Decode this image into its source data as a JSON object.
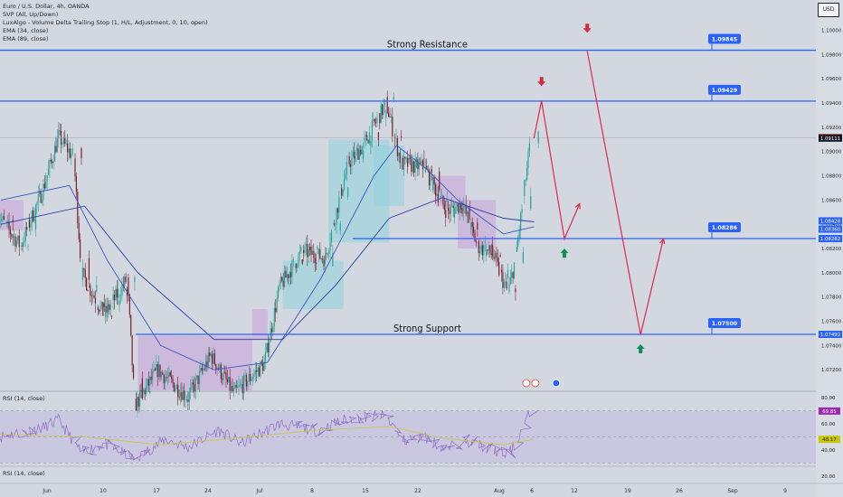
{
  "header": {
    "symbol": "Euro / U.S. Dollar, 4h, OANDA",
    "indicators": [
      "SVP (All, Up/Down)",
      "LuxAlgo - Volume Delta Trailing Stop (1, H/L, Adjustment, 0, 10, open)",
      "EMA (34, close)",
      "EMA (89, close)"
    ],
    "currency": "USD"
  },
  "colors": {
    "background": "#d3d8e0",
    "level_line": "#2962ff",
    "projection": "#e0294a",
    "down_arrow": "#d62a3c",
    "up_arrow": "#118a5e",
    "bull_candle": "#26a69a",
    "bear_candle": "#7a2030",
    "ema_line": "#3d55c8",
    "rsi_line": "#8e6fc4",
    "rsi_ma": "#c8c840",
    "rsi_band": "#c5bce0"
  },
  "chart_data": [
    {
      "type": "candlestick",
      "title": "Euro / U.S. Dollar, 4h, OANDA",
      "x_labels": [
        "Jun",
        "10",
        "17",
        "24",
        "Jul",
        "8",
        "15",
        "22",
        "Aug",
        "6",
        "12",
        "19",
        "26",
        "Sep",
        "9"
      ],
      "y_ticks": [
        1.1,
        1.098,
        1.096,
        1.094,
        1.092,
        1.09,
        1.088,
        1.086,
        1.084,
        1.082,
        1.08,
        1.078,
        1.076,
        1.074,
        1.072
      ],
      "y_range": [
        1.0703,
        1.1025
      ],
      "levels": [
        {
          "name": "Strong Resistance",
          "value": 1.09836,
          "flag": "1.09845",
          "axis_label": "1.09836"
        },
        {
          "name": "",
          "value": 1.09416,
          "flag": "1.09429",
          "axis_label": "1.09416"
        },
        {
          "name": "",
          "value": 1.08282,
          "flag": "1.08286",
          "axis_label": "1.08282"
        },
        {
          "name": "Strong Support",
          "value": 1.07492,
          "flag": "1.07500",
          "axis_label": "1.07492"
        }
      ],
      "price_labels": [
        {
          "value": 1.09116,
          "label": "1.09116",
          "color": "#e04a4a"
        },
        {
          "value": 1.09111,
          "label": "1.09111",
          "color": "#131722"
        },
        {
          "value": 1.08428,
          "label": "1.08428",
          "color": "#2962ff"
        },
        {
          "value": 1.0836,
          "label": "1.08360",
          "color": "#2962ff"
        },
        {
          "value": 1.08282,
          "label": "1.08282",
          "color": "#2962ff"
        },
        {
          "value": 1.07492,
          "label": "1.07492",
          "color": "#2962ff"
        }
      ],
      "current_price": 1.09111,
      "last_date": "2024-08-05",
      "projection_path": [
        {
          "date": "2024-08-05",
          "price": 1.0911
        },
        {
          "date": "2024-08-06",
          "price": 1.0942
        },
        {
          "date": "2024-08-09",
          "price": 1.0828
        },
        {
          "date": "2024-08-11",
          "price": 1.0857
        }
      ],
      "projection_path_2": [
        {
          "date": "2024-08-12",
          "price": 1.0983
        },
        {
          "date": "2024-08-19",
          "price": 1.0749
        },
        {
          "date": "2024-08-22",
          "price": 1.0828
        }
      ],
      "arrows": [
        {
          "dir": "down",
          "date": "2024-08-06",
          "price": 1.0957
        },
        {
          "dir": "down",
          "date": "2024-08-12",
          "price": 1.1001
        },
        {
          "dir": "up",
          "date": "2024-08-09",
          "price": 1.0817
        },
        {
          "dir": "up",
          "date": "2024-08-19",
          "price": 1.0738
        }
      ],
      "annotations": [
        {
          "text": "Strong Resistance",
          "date": "2024-07-22",
          "price": 1.09836
        },
        {
          "text": "Strong Support",
          "date": "2024-07-22",
          "price": 1.07492
        }
      ],
      "event_icons": 2,
      "close_path": [
        {
          "date": "2024-05-27",
          "price": 1.0848
        },
        {
          "date": "2024-05-30",
          "price": 1.0822
        },
        {
          "date": "2024-06-02",
          "price": 1.087
        },
        {
          "date": "2024-06-04",
          "price": 1.0912
        },
        {
          "date": "2024-06-06",
          "price": 1.0895
        },
        {
          "date": "2024-06-07",
          "price": 1.08
        },
        {
          "date": "2024-06-10",
          "price": 1.0765
        },
        {
          "date": "2024-06-13",
          "price": 1.0795
        },
        {
          "date": "2024-06-14",
          "price": 1.069
        },
        {
          "date": "2024-06-17",
          "price": 1.072
        },
        {
          "date": "2024-06-21",
          "price": 1.0697
        },
        {
          "date": "2024-06-24",
          "price": 1.0732
        },
        {
          "date": "2024-06-27",
          "price": 1.07
        },
        {
          "date": "2024-07-01",
          "price": 1.0725
        },
        {
          "date": "2024-07-03",
          "price": 1.0788
        },
        {
          "date": "2024-07-06",
          "price": 1.0818
        },
        {
          "date": "2024-07-09",
          "price": 1.0812
        },
        {
          "date": "2024-07-12",
          "price": 1.089
        },
        {
          "date": "2024-07-14",
          "price": 1.0905
        },
        {
          "date": "2024-07-17",
          "price": 1.094
        },
        {
          "date": "2024-07-19",
          "price": 1.089
        },
        {
          "date": "2024-07-22",
          "price": 1.0887
        },
        {
          "date": "2024-07-25",
          "price": 1.085
        },
        {
          "date": "2024-07-27",
          "price": 1.0857
        },
        {
          "date": "2024-07-29",
          "price": 1.0822
        },
        {
          "date": "2024-07-31",
          "price": 1.0815
        },
        {
          "date": "2024-08-02",
          "price": 1.0783
        },
        {
          "date": "2024-08-03",
          "price": 1.0812
        },
        {
          "date": "2024-08-05",
          "price": 1.0911
        }
      ],
      "ema34_path": [
        {
          "date": "2024-05-27",
          "price": 1.086
        },
        {
          "date": "2024-06-05",
          "price": 1.0872
        },
        {
          "date": "2024-06-10",
          "price": 1.081
        },
        {
          "date": "2024-06-17",
          "price": 1.074
        },
        {
          "date": "2024-06-24",
          "price": 1.072
        },
        {
          "date": "2024-07-01",
          "price": 1.0726
        },
        {
          "date": "2024-07-08",
          "price": 1.0795
        },
        {
          "date": "2024-07-15",
          "price": 1.088
        },
        {
          "date": "2024-07-18",
          "price": 1.0905
        },
        {
          "date": "2024-07-22",
          "price": 1.0885
        },
        {
          "date": "2024-07-26",
          "price": 1.086
        },
        {
          "date": "2024-08-01",
          "price": 1.0832
        },
        {
          "date": "2024-08-05",
          "price": 1.0838
        }
      ],
      "ema89_path": [
        {
          "date": "2024-05-27",
          "price": 1.084
        },
        {
          "date": "2024-06-07",
          "price": 1.0855
        },
        {
          "date": "2024-06-14",
          "price": 1.08
        },
        {
          "date": "2024-06-24",
          "price": 1.0745
        },
        {
          "date": "2024-07-03",
          "price": 1.0745
        },
        {
          "date": "2024-07-10",
          "price": 1.079
        },
        {
          "date": "2024-07-17",
          "price": 1.0845
        },
        {
          "date": "2024-07-24",
          "price": 1.0862
        },
        {
          "date": "2024-08-01",
          "price": 1.0845
        },
        {
          "date": "2024-08-05",
          "price": 1.0842
        }
      ]
    },
    {
      "type": "line",
      "title": "RSI (14, close)",
      "y_ticks": [
        80.0,
        60.0,
        40.0,
        20.0
      ],
      "y_range": [
        15,
        85
      ],
      "band": [
        30,
        70
      ],
      "value_labels": [
        {
          "value": 69.85,
          "label": "69.85",
          "color": "#9c27b0"
        },
        {
          "value": 48.17,
          "label": "48.17",
          "color": "#c7c700"
        }
      ],
      "rsi_path": [
        {
          "date": "2024-05-27",
          "price": 50
        },
        {
          "date": "2024-06-02",
          "price": 57
        },
        {
          "date": "2024-06-04",
          "price": 63
        },
        {
          "date": "2024-06-07",
          "price": 38
        },
        {
          "date": "2024-06-10",
          "price": 45
        },
        {
          "date": "2024-06-14",
          "price": 33
        },
        {
          "date": "2024-06-18",
          "price": 48
        },
        {
          "date": "2024-06-21",
          "price": 42
        },
        {
          "date": "2024-06-25",
          "price": 55
        },
        {
          "date": "2024-06-28",
          "price": 45
        },
        {
          "date": "2024-07-03",
          "price": 60
        },
        {
          "date": "2024-07-08",
          "price": 55
        },
        {
          "date": "2024-07-12",
          "price": 64
        },
        {
          "date": "2024-07-17",
          "price": 66
        },
        {
          "date": "2024-07-19",
          "price": 47
        },
        {
          "date": "2024-07-22",
          "price": 50
        },
        {
          "date": "2024-07-25",
          "price": 40
        },
        {
          "date": "2024-07-27",
          "price": 48
        },
        {
          "date": "2024-07-30",
          "price": 42
        },
        {
          "date": "2024-08-02",
          "price": 36
        },
        {
          "date": "2024-08-03",
          "price": 45
        },
        {
          "date": "2024-08-05",
          "price": 69.85
        }
      ],
      "rsi_ma_path": [
        {
          "date": "2024-05-27",
          "price": 52
        },
        {
          "date": "2024-06-07",
          "price": 50
        },
        {
          "date": "2024-06-17",
          "price": 44
        },
        {
          "date": "2024-06-27",
          "price": 49
        },
        {
          "date": "2024-07-07",
          "price": 55
        },
        {
          "date": "2024-07-17",
          "price": 58
        },
        {
          "date": "2024-07-24",
          "price": 49
        },
        {
          "date": "2024-08-01",
          "price": 44
        },
        {
          "date": "2024-08-05",
          "price": 48.17
        }
      ]
    }
  ],
  "rsi_lower": {
    "title": "RSI (14, close)"
  }
}
